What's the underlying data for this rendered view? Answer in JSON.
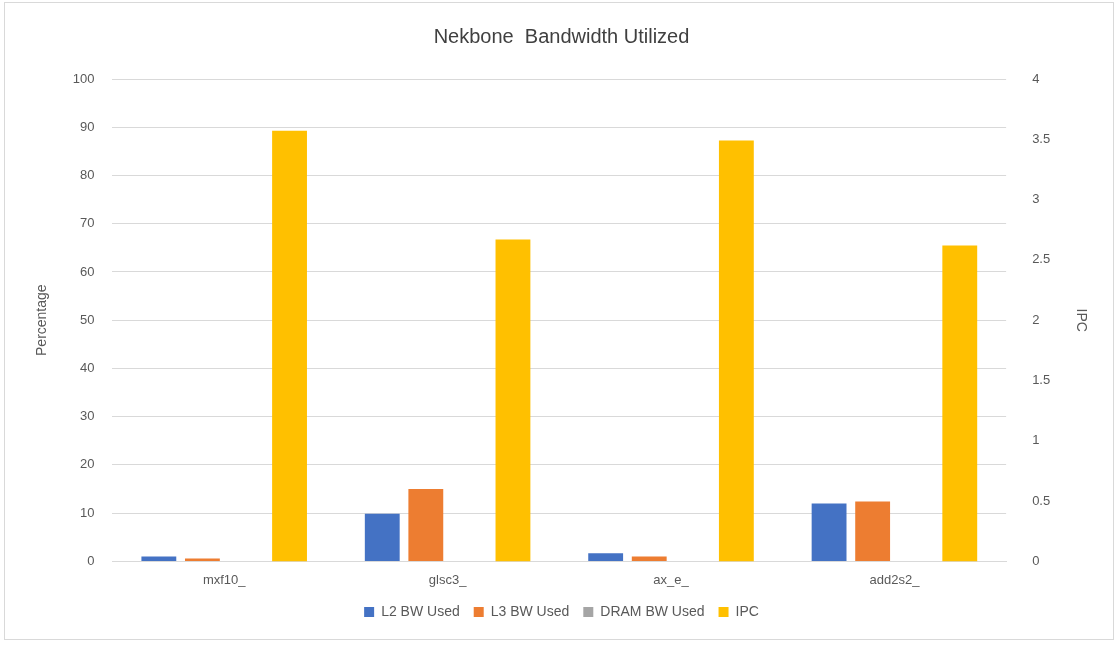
{
  "chart_data": {
    "type": "bar",
    "title": "Nekbone  Bandwidth Utilized",
    "ylabel": "Percentage",
    "y2label": "IPC",
    "categories": [
      "mxf10_",
      "glsc3_",
      "ax_e_",
      "add2s2_"
    ],
    "series": [
      {
        "name": "L2 BW Used",
        "color": "#4472c4",
        "values": [
          1.0,
          9.9,
          1.7,
          12.0
        ]
      },
      {
        "name": "L3 BW Used",
        "color": "#ed7d31",
        "values": [
          0.6,
          15.0,
          1.0,
          12.4
        ]
      },
      {
        "name": "DRAM BW Used",
        "color": "#a5a5a5",
        "values": [
          0,
          0,
          0,
          0
        ]
      },
      {
        "name": "IPC",
        "color": "#ffc000",
        "axis": "y2",
        "values": [
          3.57,
          2.67,
          3.49,
          2.62
        ]
      }
    ],
    "ylim": [
      0,
      100
    ],
    "yticks": [
      0,
      10,
      20,
      30,
      40,
      50,
      60,
      70,
      80,
      90,
      100
    ],
    "y2lim": [
      0,
      4
    ],
    "y2ticks": [
      0,
      0.5,
      1,
      1.5,
      2,
      2.5,
      3,
      3.5,
      4
    ],
    "grid": "y",
    "legend": "bottom"
  }
}
